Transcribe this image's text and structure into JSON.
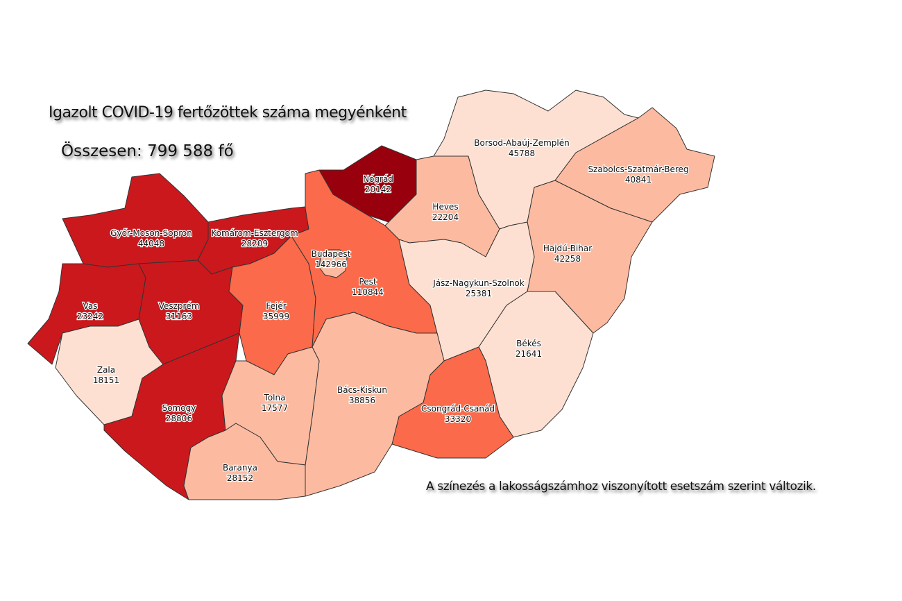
{
  "title": "Igazolt COVID-19 fertőzöttek száma megyénként",
  "total": "Összesen: 799 588 fő",
  "note": "A színezés a lakosságszámhoz viszonyított esetszám szerint változik.",
  "colors": {
    "c1": "#fee0d2",
    "c2": "#fcbba1",
    "c3": "#fb6a4a",
    "c4": "#cb181d",
    "c5": "#99000d"
  },
  "counties": [
    {
      "id": "gyor",
      "name": "Győr-Moson-Sopron",
      "cases": "44048",
      "cls": "c4"
    },
    {
      "id": "komarom",
      "name": "Komárom-Esztergom",
      "cases": "28209",
      "cls": "c4"
    },
    {
      "id": "vas",
      "name": "Vas",
      "cases": "23242",
      "cls": "c4"
    },
    {
      "id": "veszprem",
      "name": "Veszprém",
      "cases": "31163",
      "cls": "c4"
    },
    {
      "id": "zala",
      "name": "Zala",
      "cases": "18151",
      "cls": "c1"
    },
    {
      "id": "somogy",
      "name": "Somogy",
      "cases": "28806",
      "cls": "c4"
    },
    {
      "id": "fejer",
      "name": "Fejér",
      "cases": "35999",
      "cls": "c3"
    },
    {
      "id": "pest",
      "name": "Pest",
      "cases": "110844",
      "cls": "c3"
    },
    {
      "id": "budapest",
      "name": "Budapest",
      "cases": "142966",
      "cls": "c2"
    },
    {
      "id": "nograd",
      "name": "Nógrád",
      "cases": "20142",
      "cls": "c5"
    },
    {
      "id": "heves",
      "name": "Heves",
      "cases": "22204",
      "cls": "c2"
    },
    {
      "id": "borsod",
      "name": "Borsod-Abaúj-Zemplén",
      "cases": "45788",
      "cls": "c1"
    },
    {
      "id": "szabolcs",
      "name": "Szabolcs-Szatmár-Bereg",
      "cases": "40841",
      "cls": "c2"
    },
    {
      "id": "hajdu",
      "name": "Hajdú-Bihar",
      "cases": "42258",
      "cls": "c2"
    },
    {
      "id": "jnsz",
      "name": "Jász-Nagykun-Szolnok",
      "cases": "25381",
      "cls": "c1"
    },
    {
      "id": "bekes",
      "name": "Békés",
      "cases": "21641",
      "cls": "c1"
    },
    {
      "id": "csongrad",
      "name": "Csongrád-Csanád",
      "cases": "33320",
      "cls": "c3"
    },
    {
      "id": "bacs",
      "name": "Bács-Kiskun",
      "cases": "38856",
      "cls": "c2"
    },
    {
      "id": "tolna",
      "name": "Tolna",
      "cases": "17577",
      "cls": "c2"
    },
    {
      "id": "baranya",
      "name": "Baranya",
      "cases": "28152",
      "cls": "c2"
    }
  ]
}
